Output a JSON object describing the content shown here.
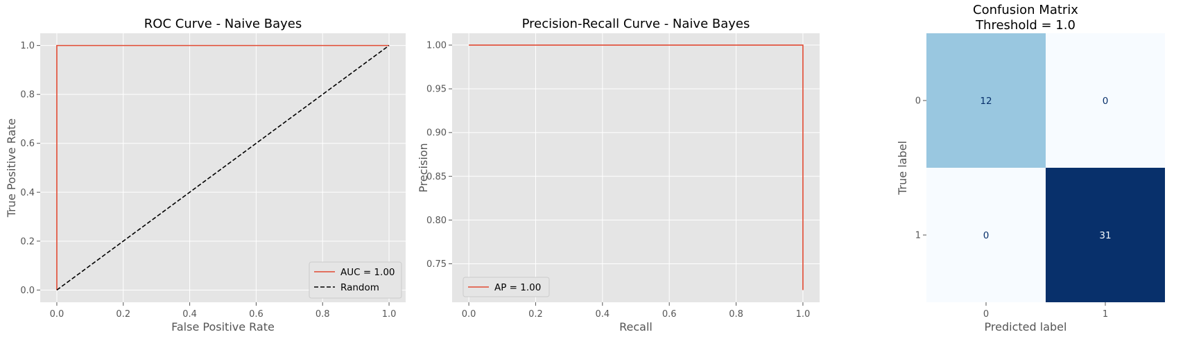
{
  "chart_data": [
    {
      "type": "line",
      "title": "ROC Curve - Naive Bayes",
      "xlabel": "False Positive Rate",
      "ylabel": "True Positive Rate",
      "xlim": [
        -0.05,
        1.05
      ],
      "ylim": [
        -0.05,
        1.05
      ],
      "xticks": [
        "0.0",
        "0.2",
        "0.4",
        "0.6",
        "0.8",
        "1.0"
      ],
      "yticks": [
        "0.0",
        "0.2",
        "0.4",
        "0.6",
        "0.8",
        "1.0"
      ],
      "grid": true,
      "legend": "bottom-right",
      "series": [
        {
          "name": "AUC = 1.00",
          "color": "#e24a33",
          "dash": "solid",
          "x": [
            0,
            0,
            1
          ],
          "y": [
            0,
            1,
            1
          ]
        },
        {
          "name": "Random",
          "color": "#000000",
          "dash": "dashed",
          "x": [
            0,
            1
          ],
          "y": [
            0,
            1
          ]
        }
      ]
    },
    {
      "type": "line",
      "title": "Precision-Recall Curve - Naive Bayes",
      "xlabel": "Recall",
      "ylabel": "Precision",
      "xlim": [
        -0.05,
        1.05
      ],
      "ylim": [
        0.706,
        1.0135
      ],
      "xticks": [
        "0.0",
        "0.2",
        "0.4",
        "0.6",
        "0.8",
        "1.0"
      ],
      "yticks": [
        "0.75",
        "0.80",
        "0.85",
        "0.90",
        "0.95",
        "1.00"
      ],
      "grid": true,
      "legend": "bottom-left",
      "series": [
        {
          "name": "AP = 1.00",
          "color": "#e24a33",
          "dash": "solid",
          "x": [
            0,
            1,
            1
          ],
          "y": [
            1.0,
            1.0,
            0.72
          ]
        }
      ]
    },
    {
      "type": "heatmap",
      "title": "Confusion Matrix",
      "subtitle": "Threshold = 1.0",
      "xlabel": "Predicted label",
      "ylabel": "True label",
      "x_categories": [
        "0",
        "1"
      ],
      "y_categories": [
        "0",
        "1"
      ],
      "values": [
        [
          12,
          0
        ],
        [
          0,
          31
        ]
      ],
      "cmap": "Blues"
    }
  ]
}
